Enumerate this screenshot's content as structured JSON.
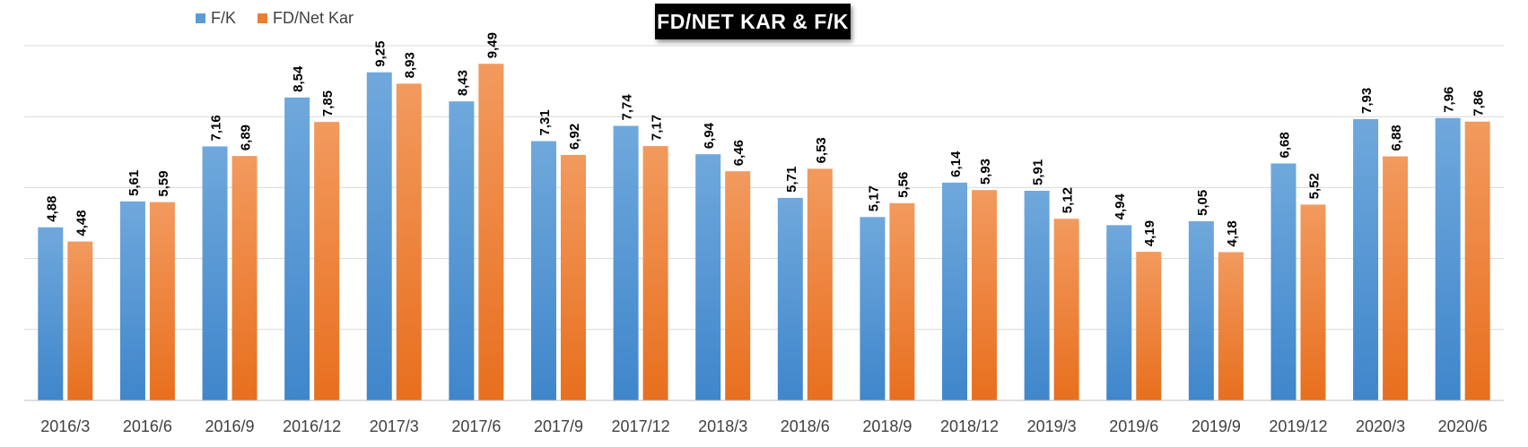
{
  "chart_data": {
    "type": "bar",
    "title": "FD/NET KAR & F/K",
    "xlabel": "",
    "ylabel": "",
    "ylim": [
      0,
      10
    ],
    "grid": true,
    "legend_position": "top-left",
    "categories": [
      "2016/3",
      "2016/6",
      "2016/9",
      "2016/12",
      "2017/3",
      "2017/6",
      "2017/9",
      "2017/12",
      "2018/3",
      "2018/6",
      "2018/9",
      "2018/12",
      "2019/3",
      "2019/6",
      "2019/9",
      "2019/12",
      "2020/3",
      "2020/6"
    ],
    "series": [
      {
        "name": "F/K",
        "color": "#5B9BD5",
        "values": [
          4.88,
          5.61,
          7.16,
          8.54,
          9.25,
          8.43,
          7.31,
          7.74,
          6.94,
          5.71,
          5.17,
          6.14,
          5.91,
          4.94,
          5.05,
          6.68,
          7.93,
          7.96
        ],
        "labels": [
          "4,88",
          "5,61",
          "7,16",
          "8,54",
          "9,25",
          "8,43",
          "7,31",
          "7,74",
          "6,94",
          "5,71",
          "5,17",
          "6,14",
          "5,91",
          "4,94",
          "5,05",
          "6,68",
          "7,93",
          "7,96"
        ]
      },
      {
        "name": "FD/Net Kar",
        "color": "#ED7D31",
        "values": [
          4.48,
          5.59,
          6.89,
          7.85,
          8.93,
          9.49,
          6.92,
          7.17,
          6.46,
          6.53,
          5.56,
          5.93,
          5.12,
          4.19,
          4.18,
          5.52,
          6.88,
          7.86
        ],
        "labels": [
          "4,48",
          "5,59",
          "6,89",
          "7,85",
          "8,93",
          "9,49",
          "6,92",
          "7,17",
          "6,46",
          "6,53",
          "5,56",
          "5,93",
          "5,12",
          "4,19",
          "4,18",
          "5,52",
          "6,88",
          "7,86"
        ]
      }
    ]
  }
}
